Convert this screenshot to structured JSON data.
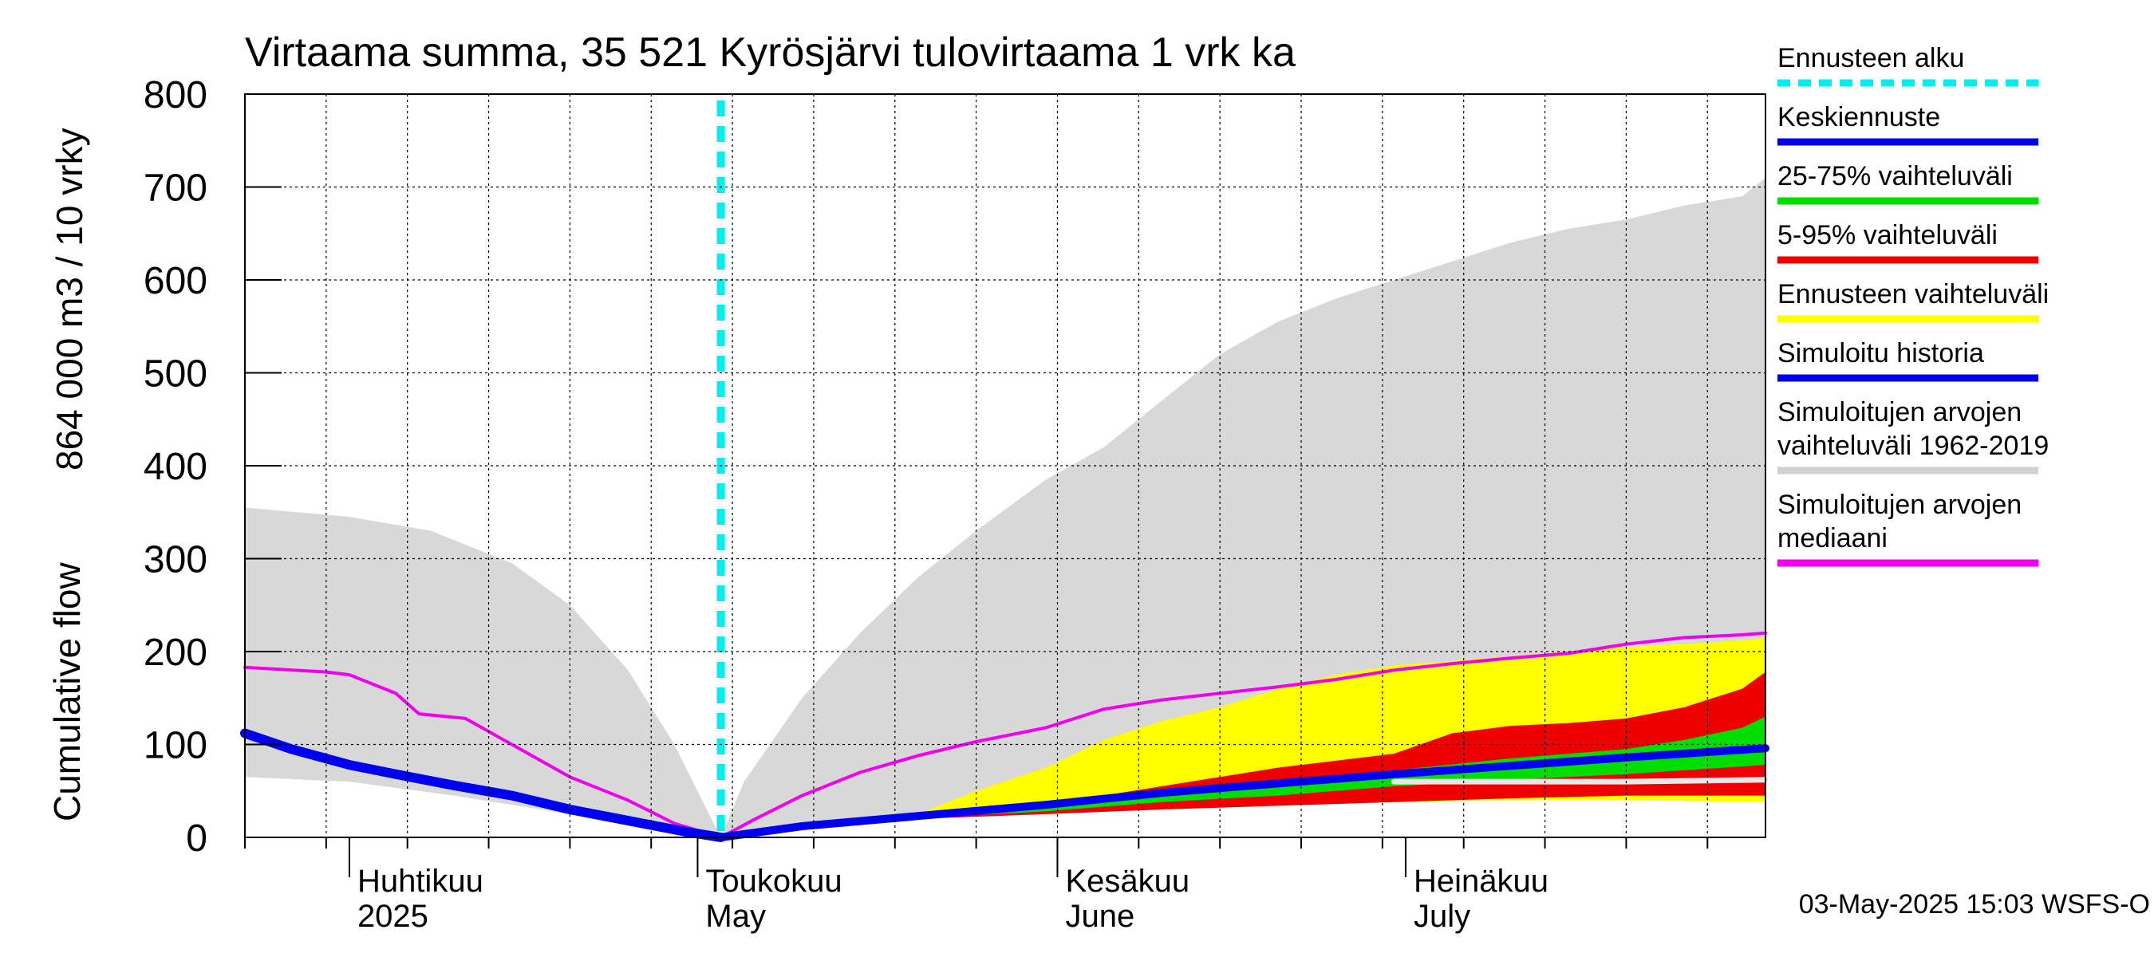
{
  "chart_data": {
    "type": "area",
    "title": "Virtaama summa, 35 521 Kyrösjärvi tulovirtaama 1 vrk ka",
    "ylabel_line1": "864 000 m3 / 10 vrky",
    "ylabel_line2": "Cumulative flow",
    "ylim": [
      0,
      800
    ],
    "yticks": [
      0,
      100,
      200,
      300,
      400,
      500,
      600,
      700,
      800
    ],
    "xlim": [
      "2025-03-23",
      "2025-08-01"
    ],
    "grid": true,
    "legend_position": "right",
    "forecast_start": "2025-05-03",
    "month_labels": [
      {
        "date": "2025-04-01",
        "fi": "Huhtikuu",
        "en": "2025"
      },
      {
        "date": "2025-05-01",
        "fi": "Toukokuu",
        "en": "May"
      },
      {
        "date": "2025-06-01",
        "fi": "Kesäkuu",
        "en": "June"
      },
      {
        "date": "2025-07-01",
        "fi": "Heinäkuu",
        "en": "July"
      }
    ],
    "timestamp": "03-May-2025 15:03 WSFS-O",
    "colors": {
      "forecast_start": "#00eeee",
      "mean_forecast": "#0000ee",
      "range_25_75": "#00dd00",
      "range_5_95": "#ee0000",
      "forecast_range": "#ffff00",
      "sim_history": "#0000ee",
      "sim_range": "#d8d8d8",
      "sim_median": "#ee00ee"
    },
    "legend": [
      {
        "label": "Ennusteen alku",
        "color": "#00eeee",
        "style": "dashed"
      },
      {
        "label": "Keskiennuste",
        "color": "#0000ee",
        "style": "solid"
      },
      {
        "label": "25-75% vaihteluväli",
        "color": "#00dd00",
        "style": "solid"
      },
      {
        "label": "5-95% vaihteluväli",
        "color": "#ee0000",
        "style": "solid"
      },
      {
        "label": "Ennusteen vaihteluväli",
        "color": "#ffff00",
        "style": "solid"
      },
      {
        "label": "Simuloitu historia",
        "color": "#0000ee",
        "style": "solid"
      },
      {
        "label": "Simuloitujen arvojen",
        "label2": "vaihteluväli 1962-2019",
        "color": "#d0d0d0",
        "style": "solid"
      },
      {
        "label": "Simuloitujen arvojen",
        "label2": "mediaani",
        "color": "#ee00ee",
        "style": "solid"
      }
    ],
    "series": {
      "sim_range_upper": [
        [
          "2025-03-23",
          355
        ],
        [
          "2025-04-01",
          345
        ],
        [
          "2025-04-08",
          330
        ],
        [
          "2025-04-15",
          295
        ],
        [
          "2025-04-20",
          250
        ],
        [
          "2025-04-25",
          180
        ],
        [
          "2025-04-29",
          100
        ],
        [
          "2025-05-03",
          0
        ],
        [
          "2025-05-05",
          60
        ],
        [
          "2025-05-10",
          150
        ],
        [
          "2025-05-15",
          220
        ],
        [
          "2025-05-20",
          280
        ],
        [
          "2025-05-25",
          330
        ],
        [
          "2025-05-31",
          385
        ],
        [
          "2025-06-05",
          420
        ],
        [
          "2025-06-10",
          470
        ],
        [
          "2025-06-15",
          520
        ],
        [
          "2025-06-20",
          555
        ],
        [
          "2025-06-25",
          580
        ],
        [
          "2025-06-30",
          600
        ],
        [
          "2025-07-05",
          620
        ],
        [
          "2025-07-10",
          640
        ],
        [
          "2025-07-15",
          655
        ],
        [
          "2025-07-20",
          665
        ],
        [
          "2025-07-25",
          680
        ],
        [
          "2025-07-30",
          690
        ],
        [
          "2025-08-01",
          710
        ]
      ],
      "sim_range_lower": [
        [
          "2025-03-23",
          65
        ],
        [
          "2025-04-01",
          60
        ],
        [
          "2025-04-10",
          45
        ],
        [
          "2025-04-20",
          25
        ],
        [
          "2025-04-28",
          8
        ],
        [
          "2025-05-03",
          0
        ],
        [
          "2025-05-10",
          12
        ],
        [
          "2025-05-20",
          22
        ],
        [
          "2025-05-31",
          30
        ],
        [
          "2025-06-10",
          36
        ],
        [
          "2025-06-20",
          40
        ],
        [
          "2025-06-30",
          42
        ],
        [
          "2025-07-10",
          44
        ],
        [
          "2025-07-20",
          45
        ],
        [
          "2025-08-01",
          46
        ]
      ],
      "sim_median": [
        [
          "2025-03-23",
          183
        ],
        [
          "2025-03-30",
          178
        ],
        [
          "2025-04-01",
          175
        ],
        [
          "2025-04-05",
          155
        ],
        [
          "2025-04-07",
          133
        ],
        [
          "2025-04-11",
          128
        ],
        [
          "2025-04-15",
          100
        ],
        [
          "2025-04-20",
          65
        ],
        [
          "2025-04-25",
          40
        ],
        [
          "2025-04-29",
          15
        ],
        [
          "2025-05-03",
          0
        ],
        [
          "2025-05-06",
          20
        ],
        [
          "2025-05-10",
          45
        ],
        [
          "2025-05-15",
          70
        ],
        [
          "2025-05-20",
          88
        ],
        [
          "2025-05-25",
          103
        ],
        [
          "2025-05-31",
          118
        ],
        [
          "2025-06-05",
          138
        ],
        [
          "2025-06-10",
          148
        ],
        [
          "2025-06-15",
          155
        ],
        [
          "2025-06-20",
          162
        ],
        [
          "2025-06-25",
          170
        ],
        [
          "2025-06-30",
          180
        ],
        [
          "2025-07-05",
          187
        ],
        [
          "2025-07-10",
          193
        ],
        [
          "2025-07-15",
          198
        ],
        [
          "2025-07-20",
          208
        ],
        [
          "2025-07-25",
          215
        ],
        [
          "2025-07-30",
          218
        ],
        [
          "2025-08-01",
          220
        ]
      ],
      "sim_history": [
        [
          "2025-03-23",
          112
        ],
        [
          "2025-03-27",
          95
        ],
        [
          "2025-04-01",
          78
        ],
        [
          "2025-04-05",
          68
        ],
        [
          "2025-04-10",
          56
        ],
        [
          "2025-04-15",
          45
        ],
        [
          "2025-04-20",
          30
        ],
        [
          "2025-04-25",
          18
        ],
        [
          "2025-04-30",
          6
        ],
        [
          "2025-05-03",
          0
        ]
      ],
      "forecast_upper": [
        [
          "2025-05-03",
          0
        ],
        [
          "2025-05-10",
          12
        ],
        [
          "2025-05-20",
          25
        ],
        [
          "2025-05-25",
          50
        ],
        [
          "2025-05-31",
          75
        ],
        [
          "2025-06-05",
          105
        ],
        [
          "2025-06-10",
          125
        ],
        [
          "2025-06-15",
          140
        ],
        [
          "2025-06-20",
          160
        ],
        [
          "2025-06-25",
          175
        ],
        [
          "2025-06-30",
          185
        ],
        [
          "2025-07-05",
          190
        ],
        [
          "2025-07-10",
          195
        ],
        [
          "2025-07-15",
          200
        ],
        [
          "2025-07-20",
          205
        ],
        [
          "2025-07-25",
          208
        ],
        [
          "2025-07-30",
          212
        ],
        [
          "2025-08-01",
          215
        ]
      ],
      "forecast_lower": [
        [
          "2025-05-03",
          0
        ],
        [
          "2025-05-10",
          11
        ],
        [
          "2025-05-20",
          22
        ],
        [
          "2025-05-31",
          28
        ],
        [
          "2025-06-10",
          32
        ],
        [
          "2025-06-20",
          36
        ],
        [
          "2025-06-30",
          38
        ],
        [
          "2025-07-10",
          40
        ],
        [
          "2025-07-20",
          40
        ],
        [
          "2025-08-01",
          38
        ]
      ],
      "p95": [
        [
          "2025-05-03",
          0
        ],
        [
          "2025-05-10",
          11
        ],
        [
          "2025-05-20",
          22
        ],
        [
          "2025-05-31",
          35
        ],
        [
          "2025-06-10",
          55
        ],
        [
          "2025-06-20",
          75
        ],
        [
          "2025-06-30",
          90
        ],
        [
          "2025-07-05",
          112
        ],
        [
          "2025-07-10",
          120
        ],
        [
          "2025-07-15",
          123
        ],
        [
          "2025-07-20",
          128
        ],
        [
          "2025-07-25",
          140
        ],
        [
          "2025-07-30",
          160
        ],
        [
          "2025-08-01",
          178
        ]
      ],
      "p75": [
        [
          "2025-05-03",
          0
        ],
        [
          "2025-05-10",
          11
        ],
        [
          "2025-05-20",
          22
        ],
        [
          "2025-05-31",
          32
        ],
        [
          "2025-06-10",
          48
        ],
        [
          "2025-06-20",
          60
        ],
        [
          "2025-06-30",
          72
        ],
        [
          "2025-07-10",
          85
        ],
        [
          "2025-07-20",
          95
        ],
        [
          "2025-07-25",
          105
        ],
        [
          "2025-07-30",
          118
        ],
        [
          "2025-08-01",
          130
        ]
      ],
      "p25": [
        [
          "2025-05-03",
          0
        ],
        [
          "2025-05-10",
          11
        ],
        [
          "2025-05-20",
          21
        ],
        [
          "2025-05-31",
          28
        ],
        [
          "2025-06-10",
          38
        ],
        [
          "2025-06-20",
          45
        ],
        [
          "2025-06-30",
          55
        ],
        [
          "2025-07-10",
          62
        ],
        [
          "2025-07-20",
          68
        ],
        [
          "2025-08-01",
          78
        ]
      ],
      "p5": [
        [
          "2025-05-03",
          0
        ],
        [
          "2025-05-10",
          11
        ],
        [
          "2025-05-20",
          20
        ],
        [
          "2025-05-31",
          25
        ],
        [
          "2025-06-10",
          30
        ],
        [
          "2025-06-20",
          34
        ],
        [
          "2025-06-30",
          38
        ],
        [
          "2025-07-10",
          42
        ],
        [
          "2025-07-20",
          45
        ],
        [
          "2025-08-01",
          45
        ]
      ],
      "mean_forecast": [
        [
          "2025-05-03",
          0
        ],
        [
          "2025-05-10",
          12
        ],
        [
          "2025-05-20",
          23
        ],
        [
          "2025-05-31",
          35
        ],
        [
          "2025-06-10",
          48
        ],
        [
          "2025-06-20",
          58
        ],
        [
          "2025-06-30",
          68
        ],
        [
          "2025-07-10",
          77
        ],
        [
          "2025-07-20",
          86
        ],
        [
          "2025-08-01",
          96
        ]
      ],
      "forecast_median_white": [
        [
          "2025-06-30",
          60
        ],
        [
          "2025-07-10",
          60
        ],
        [
          "2025-07-20",
          60
        ],
        [
          "2025-08-01",
          62
        ]
      ]
    }
  }
}
